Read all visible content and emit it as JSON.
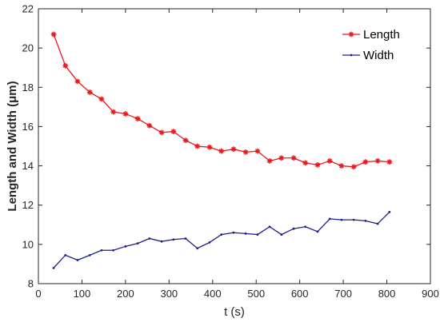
{
  "chart_data": {
    "type": "line",
    "xlabel": "t (s)",
    "ylabel": "Length and Width (μm)",
    "xlim": [
      0,
      900
    ],
    "ylim": [
      8,
      22
    ],
    "xticks": [
      0,
      100,
      200,
      300,
      400,
      500,
      600,
      700,
      800,
      900
    ],
    "yticks": [
      8,
      10,
      12,
      14,
      16,
      18,
      20,
      22
    ],
    "grid": false,
    "legend_position": "top-right",
    "series": [
      {
        "name": "Length",
        "color": "#e8191e",
        "marker": "asterisk",
        "x": [
          35,
          62,
          90,
          118,
          145,
          172,
          200,
          228,
          255,
          283,
          310,
          338,
          365,
          393,
          420,
          448,
          476,
          503,
          531,
          558,
          586,
          613,
          641,
          669,
          696,
          724,
          751,
          779,
          806
        ],
        "y": [
          20.7,
          19.1,
          18.3,
          17.75,
          17.4,
          16.75,
          16.65,
          16.4,
          16.05,
          15.7,
          15.75,
          15.3,
          15.0,
          14.95,
          14.75,
          14.85,
          14.7,
          14.75,
          14.25,
          14.4,
          14.4,
          14.15,
          14.05,
          14.25,
          14.0,
          13.95,
          14.2,
          14.25,
          14.2
        ]
      },
      {
        "name": "Width",
        "color": "#1f1f8f",
        "marker": "dot",
        "x": [
          35,
          62,
          90,
          118,
          145,
          172,
          200,
          228,
          255,
          283,
          310,
          338,
          365,
          393,
          420,
          448,
          476,
          503,
          531,
          558,
          586,
          613,
          641,
          669,
          696,
          724,
          751,
          779,
          806
        ],
        "y": [
          8.8,
          9.45,
          9.2,
          9.45,
          9.7,
          9.7,
          9.9,
          10.05,
          10.3,
          10.15,
          10.25,
          10.3,
          9.8,
          10.1,
          10.5,
          10.6,
          10.55,
          10.5,
          10.9,
          10.5,
          10.8,
          10.9,
          10.65,
          11.3,
          11.25,
          11.25,
          11.2,
          11.05,
          11.65
        ]
      }
    ]
  }
}
